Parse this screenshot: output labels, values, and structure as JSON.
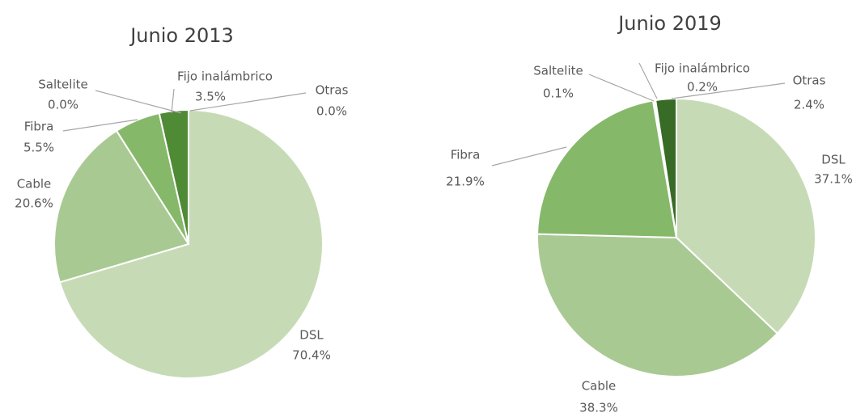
{
  "chart_data": [
    {
      "type": "pie",
      "title": "Junio 2013",
      "categories": [
        "DSL",
        "Cable",
        "Fibra",
        "Saltelite",
        "Fijo inalámbrico",
        "Otras"
      ],
      "values": [
        70.4,
        20.6,
        5.5,
        0.0,
        3.5,
        0.0
      ],
      "value_labels": [
        "70.4%",
        "20.6%",
        "5.5%",
        "0.0%",
        "3.5%",
        "0.0%"
      ],
      "colors": [
        "#c6dbb5",
        "#a9c993",
        "#86b86a",
        "#6fa552",
        "#4f8a35",
        "#386b25"
      ]
    },
    {
      "type": "pie",
      "title": "Junio 2019",
      "categories": [
        "DSL",
        "Cable",
        "Fibra",
        "Saltelite",
        "Fijo inalámbrico",
        "Otras"
      ],
      "values": [
        37.1,
        38.3,
        21.9,
        0.1,
        0.2,
        2.4
      ],
      "value_labels": [
        "37.1%",
        "38.3%",
        "21.9%",
        "0.1%",
        "0.2%",
        "2.4%"
      ],
      "colors": [
        "#c6dbb5",
        "#a9c993",
        "#86b86a",
        "#6fa552",
        "#4f8a35",
        "#386b25"
      ]
    }
  ]
}
